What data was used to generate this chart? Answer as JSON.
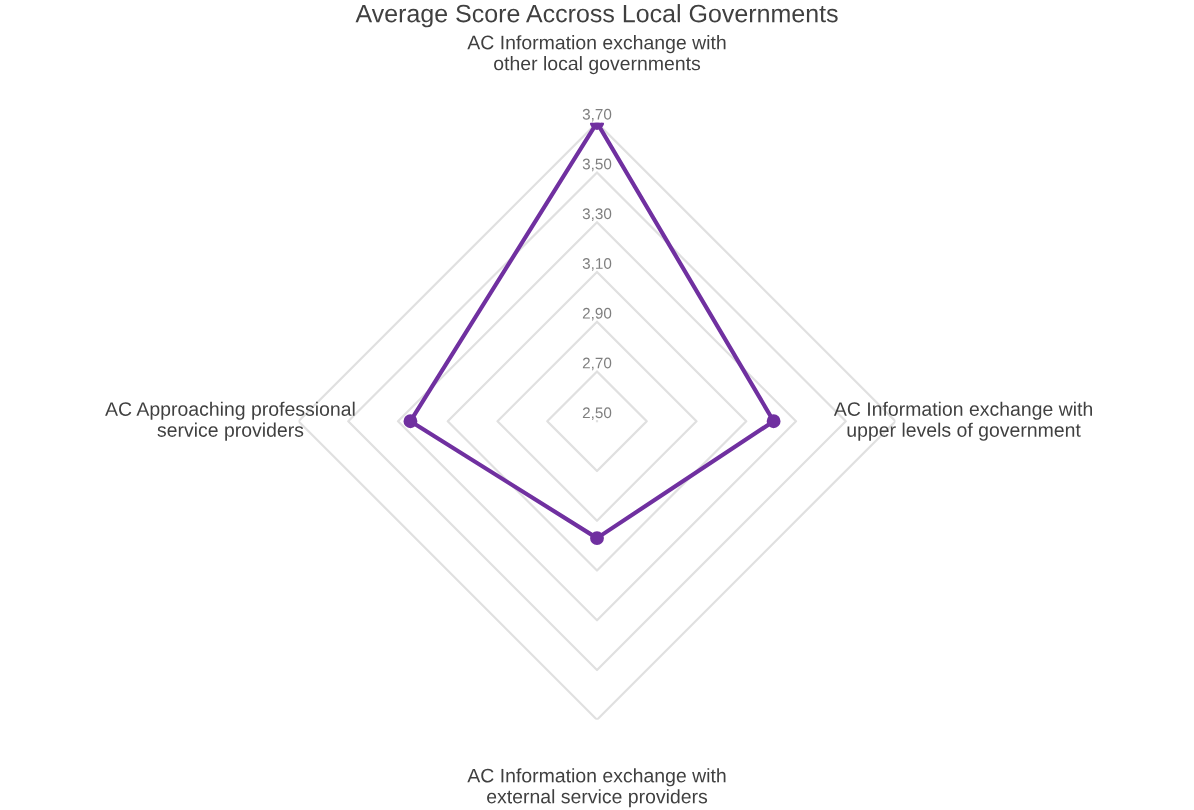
{
  "chart_data": {
    "type": "radar",
    "title": "Average Score Accross Local Governments",
    "categories": [
      "AC Information exchange with\nother local governments",
      "AC Information exchange with\nupper levels of government",
      "AC Information exchange with\nexternal service providers",
      "AC Approaching professional\nservice providers"
    ],
    "series": [
      {
        "color": "#7030a0",
        "values": [
          3.7,
          3.21,
          2.97,
          3.25
        ]
      }
    ],
    "ylim": [
      2.5,
      3.7
    ],
    "yticks": [
      {
        "value": 2.5,
        "label": "2,50"
      },
      {
        "value": 2.7,
        "label": "2,70"
      },
      {
        "value": 2.9,
        "label": "2,90"
      },
      {
        "value": 3.1,
        "label": "3,10"
      },
      {
        "value": 3.3,
        "label": "3,30"
      },
      {
        "value": 3.5,
        "label": "3,50"
      },
      {
        "value": 3.7,
        "label": "3,70"
      }
    ],
    "grid": true,
    "marker": "circle",
    "line_style": "solid"
  }
}
